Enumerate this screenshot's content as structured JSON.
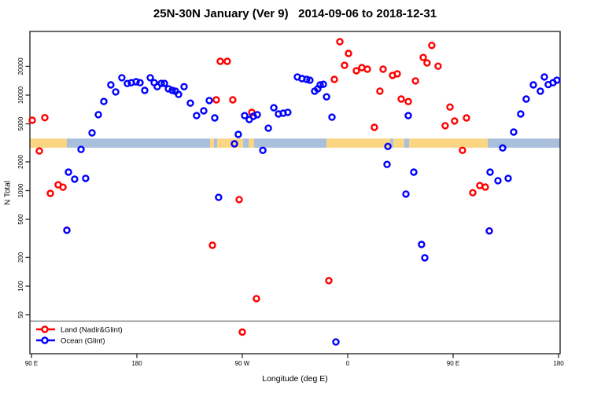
{
  "title": "25N-30N January (Ver 9)   2014-09-06 to 2018-12-31",
  "chart_data": {
    "type": "scatter",
    "title": "25N-30N January (Ver 9)   2014-09-06 to 2018-12-31",
    "xlabel": "Longitude (deg E)",
    "ylabel": "N Total",
    "y_scale": "log",
    "ylim": [
      20,
      46000
    ],
    "x_axis_span_deg": 450,
    "x_axis_note": "axis starts at 90E, wraps eastward through 180, 90W, 0, 90E to 180; point deg = degrees east of left edge",
    "x_ticks": [
      {
        "label": "90 E",
        "deg": 0
      },
      {
        "label": "180",
        "deg": 90
      },
      {
        "label": "90 W",
        "deg": 180
      },
      {
        "label": "0",
        "deg": 270
      },
      {
        "label": "90 E",
        "deg": 360
      },
      {
        "label": "180",
        "deg": 450
      }
    ],
    "y_ticks": [
      20000,
      10000,
      5000,
      2000,
      1000,
      500,
      200,
      100,
      50
    ],
    "grid": "off",
    "legend_position": "bottom-left",
    "legend": [
      {
        "label": "Land (Nadir&Glint)",
        "color": "#ff0000"
      },
      {
        "label": "Ocean (Glint)",
        "color": "#0000ff"
      }
    ],
    "reference_line_n": 43,
    "reference_line_color": "#6e6e6e",
    "land_ocean_strip": {
      "n_center": 3150,
      "colors": {
        "land": "#fad582",
        "ocean": "#a9bfdb"
      },
      "segments": [
        {
          "type": "land",
          "from_deg": 0.0,
          "to_deg": 30.2
        },
        {
          "type": "ocean",
          "from_deg": 30.2,
          "to_deg": 152.5
        },
        {
          "type": "land",
          "from_deg": 152.5,
          "to_deg": 155.8
        },
        {
          "type": "ocean",
          "from_deg": 155.8,
          "to_deg": 158.5
        },
        {
          "type": "land",
          "from_deg": 158.5,
          "to_deg": 180.7
        },
        {
          "type": "ocean",
          "from_deg": 180.7,
          "to_deg": 185.4
        },
        {
          "type": "land",
          "from_deg": 185.4,
          "to_deg": 190.1
        },
        {
          "type": "ocean",
          "from_deg": 190.1,
          "to_deg": 251.9
        },
        {
          "type": "land",
          "from_deg": 251.9,
          "to_deg": 306.3
        },
        {
          "type": "ocean",
          "from_deg": 306.3,
          "to_deg": 308.9
        },
        {
          "type": "land",
          "from_deg": 308.9,
          "to_deg": 318.3
        },
        {
          "type": "ocean",
          "from_deg": 318.3,
          "to_deg": 322.4
        },
        {
          "type": "land",
          "from_deg": 322.4,
          "to_deg": 389.5
        },
        {
          "type": "ocean",
          "from_deg": 389.5,
          "to_deg": 450.0
        }
      ]
    },
    "series": [
      {
        "name": "Land (Nadir&Glint)",
        "color": "#ff0000",
        "points": [
          {
            "deg": 0.7,
            "n": 5450
          },
          {
            "deg": 6.7,
            "n": 2600
          },
          {
            "deg": 11.4,
            "n": 5800
          },
          {
            "deg": 16.1,
            "n": 935
          },
          {
            "deg": 22.8,
            "n": 1150
          },
          {
            "deg": 26.9,
            "n": 1085
          },
          {
            "deg": 30.2,
            "n": 385
          },
          {
            "deg": 154.5,
            "n": 268
          },
          {
            "deg": 157.8,
            "n": 8930
          },
          {
            "deg": 161.2,
            "n": 22600
          },
          {
            "deg": 167.2,
            "n": 22600
          },
          {
            "deg": 171.9,
            "n": 8930
          },
          {
            "deg": 177.3,
            "n": 805
          },
          {
            "deg": 180.0,
            "n": 33
          },
          {
            "deg": 188.1,
            "n": 6590
          },
          {
            "deg": 192.1,
            "n": 74
          },
          {
            "deg": 253.9,
            "n": 114
          },
          {
            "deg": 258.6,
            "n": 14600
          },
          {
            "deg": 263.3,
            "n": 36200
          },
          {
            "deg": 267.3,
            "n": 20500
          },
          {
            "deg": 270.7,
            "n": 27300
          },
          {
            "deg": 277.4,
            "n": 18000
          },
          {
            "deg": 282.1,
            "n": 19400
          },
          {
            "deg": 286.8,
            "n": 18700
          },
          {
            "deg": 292.8,
            "n": 4600
          },
          {
            "deg": 297.5,
            "n": 11000
          },
          {
            "deg": 300.2,
            "n": 18700
          },
          {
            "deg": 308.3,
            "n": 16100
          },
          {
            "deg": 312.3,
            "n": 16700
          },
          {
            "deg": 315.7,
            "n": 9100
          },
          {
            "deg": 321.7,
            "n": 8560
          },
          {
            "deg": 327.8,
            "n": 14100
          },
          {
            "deg": 334.5,
            "n": 24800
          },
          {
            "deg": 337.8,
            "n": 21700
          },
          {
            "deg": 341.8,
            "n": 33100
          },
          {
            "deg": 347.2,
            "n": 20100
          },
          {
            "deg": 353.2,
            "n": 4780
          },
          {
            "deg": 357.3,
            "n": 7500
          },
          {
            "deg": 361.3,
            "n": 5360
          },
          {
            "deg": 368.0,
            "n": 2640
          },
          {
            "deg": 371.4,
            "n": 5770
          },
          {
            "deg": 376.8,
            "n": 950
          },
          {
            "deg": 382.8,
            "n": 1130
          },
          {
            "deg": 387.5,
            "n": 1090
          },
          {
            "deg": 390.9,
            "n": 378
          }
        ]
      },
      {
        "name": "Ocean (Glint)",
        "color": "#0000ff",
        "points": [
          {
            "deg": 30.2,
            "n": 385
          },
          {
            "deg": 31.6,
            "n": 1560
          },
          {
            "deg": 36.9,
            "n": 1320
          },
          {
            "deg": 42.3,
            "n": 2700
          },
          {
            "deg": 46.3,
            "n": 1345
          },
          {
            "deg": 51.7,
            "n": 4030
          },
          {
            "deg": 57.1,
            "n": 6240
          },
          {
            "deg": 61.8,
            "n": 8580
          },
          {
            "deg": 67.8,
            "n": 12800
          },
          {
            "deg": 71.9,
            "n": 10800
          },
          {
            "deg": 77.2,
            "n": 15200
          },
          {
            "deg": 81.9,
            "n": 13250
          },
          {
            "deg": 85.3,
            "n": 13500
          },
          {
            "deg": 89.3,
            "n": 13800
          },
          {
            "deg": 92.7,
            "n": 13500
          },
          {
            "deg": 96.7,
            "n": 11200
          },
          {
            "deg": 101.4,
            "n": 15200
          },
          {
            "deg": 104.8,
            "n": 13500
          },
          {
            "deg": 107.4,
            "n": 12240
          },
          {
            "deg": 110.8,
            "n": 13260
          },
          {
            "deg": 113.5,
            "n": 13260
          },
          {
            "deg": 116.9,
            "n": 11640
          },
          {
            "deg": 120.2,
            "n": 11200
          },
          {
            "deg": 122.9,
            "n": 11000
          },
          {
            "deg": 125.6,
            "n": 10170
          },
          {
            "deg": 130.3,
            "n": 12240
          },
          {
            "deg": 135.7,
            "n": 8240
          },
          {
            "deg": 141.0,
            "n": 6100
          },
          {
            "deg": 147.1,
            "n": 6850
          },
          {
            "deg": 151.8,
            "n": 8770
          },
          {
            "deg": 156.5,
            "n": 5770
          },
          {
            "deg": 159.8,
            "n": 850
          },
          {
            "deg": 173.3,
            "n": 3090
          },
          {
            "deg": 176.6,
            "n": 3880
          },
          {
            "deg": 182.0,
            "n": 6100
          },
          {
            "deg": 186.0,
            "n": 5550
          },
          {
            "deg": 189.4,
            "n": 6000
          },
          {
            "deg": 192.8,
            "n": 6240
          },
          {
            "deg": 197.5,
            "n": 2640
          },
          {
            "deg": 202.2,
            "n": 4500
          },
          {
            "deg": 206.9,
            "n": 7370
          },
          {
            "deg": 210.9,
            "n": 6350
          },
          {
            "deg": 214.9,
            "n": 6470
          },
          {
            "deg": 218.9,
            "n": 6600
          },
          {
            "deg": 227.0,
            "n": 15500
          },
          {
            "deg": 231.0,
            "n": 14900
          },
          {
            "deg": 235.0,
            "n": 14600
          },
          {
            "deg": 237.7,
            "n": 14300
          },
          {
            "deg": 241.8,
            "n": 11000
          },
          {
            "deg": 244.4,
            "n": 11640
          },
          {
            "deg": 246.5,
            "n": 12800
          },
          {
            "deg": 249.2,
            "n": 13000
          },
          {
            "deg": 251.9,
            "n": 9600
          },
          {
            "deg": 256.6,
            "n": 5870
          },
          {
            "deg": 259.9,
            "n": 26
          },
          {
            "deg": 303.6,
            "n": 1880
          },
          {
            "deg": 304.3,
            "n": 2900
          },
          {
            "deg": 319.7,
            "n": 920
          },
          {
            "deg": 321.7,
            "n": 6100
          },
          {
            "deg": 326.4,
            "n": 1560
          },
          {
            "deg": 333.1,
            "n": 273
          },
          {
            "deg": 335.8,
            "n": 198
          },
          {
            "deg": 390.9,
            "n": 378
          },
          {
            "deg": 391.6,
            "n": 1560
          },
          {
            "deg": 398.3,
            "n": 1270
          },
          {
            "deg": 402.3,
            "n": 2800
          },
          {
            "deg": 407.0,
            "n": 1345
          },
          {
            "deg": 411.7,
            "n": 4100
          },
          {
            "deg": 417.7,
            "n": 6350
          },
          {
            "deg": 422.4,
            "n": 9100
          },
          {
            "deg": 428.5,
            "n": 12800
          },
          {
            "deg": 434.5,
            "n": 11000
          },
          {
            "deg": 437.9,
            "n": 15500
          },
          {
            "deg": 441.2,
            "n": 12900
          },
          {
            "deg": 445.3,
            "n": 13500
          },
          {
            "deg": 448.6,
            "n": 14300
          }
        ]
      }
    ]
  }
}
